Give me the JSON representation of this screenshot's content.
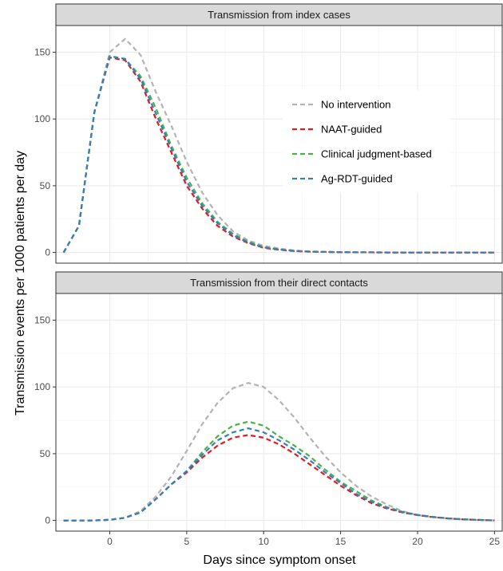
{
  "chart_data": {
    "type": "line",
    "xlabel": "Days since symptom onset",
    "ylabel": "Transmission events per 1000 patients per day",
    "xlim": [
      -3.5,
      25.5
    ],
    "ylim": [
      -8,
      170
    ],
    "x_ticks": [
      0,
      5,
      10,
      15,
      20,
      25
    ],
    "y_ticks": [
      0,
      50,
      100,
      150
    ],
    "grid": true,
    "legend_position": "top-right (inside top panel)",
    "series_styles": [
      {
        "name": "No intervention",
        "color": "#b3b3b3"
      },
      {
        "name": "NAAT-guided",
        "color": "#e41a1c"
      },
      {
        "name": "Clinical judgment-based",
        "color": "#4daf4a"
      },
      {
        "name": "Ag-RDT-guided",
        "color": "#377eb8"
      }
    ],
    "x": [
      -3,
      -2,
      -1,
      0,
      1,
      2,
      3,
      4,
      5,
      6,
      7,
      8,
      9,
      10,
      11,
      12,
      13,
      14,
      15,
      16,
      17,
      18,
      19,
      20,
      21,
      22,
      23,
      24,
      25
    ],
    "panels": [
      {
        "title": "Transmission from index cases",
        "series": [
          {
            "name": "No intervention",
            "values": [
              0,
              20,
              105,
              150,
              160,
              148,
              120,
              95,
              68,
              45,
              28,
              16,
              9,
              5,
              3,
              1.5,
              0.8,
              0.5,
              0.3,
              0.2,
              0.1,
              0.1,
              0,
              0,
              0,
              0,
              0,
              0,
              0
            ]
          },
          {
            "name": "NAAT-guided",
            "values": [
              0,
              20,
              105,
              146,
              144,
              128,
              100,
              75,
              50,
              33,
              20,
              12,
              7,
              3.5,
              2,
              1,
              0.6,
              0.4,
              0.2,
              0.1,
              0.1,
              0,
              0,
              0,
              0,
              0,
              0,
              0,
              0
            ]
          },
          {
            "name": "Clinical judgment-based",
            "values": [
              0,
              20,
              105,
              147,
              145,
              132,
              108,
              80,
              56,
              37,
              23,
              14,
              8,
              4,
              2.5,
              1.3,
              0.7,
              0.4,
              0.3,
              0.2,
              0.1,
              0,
              0,
              0,
              0,
              0,
              0,
              0,
              0
            ]
          },
          {
            "name": "Ag-RDT-guided",
            "values": [
              0,
              20,
              105,
              147,
              145,
              130,
              104,
              78,
              53,
              35,
              22,
              13,
              7.5,
              3.8,
              2.2,
              1.2,
              0.6,
              0.4,
              0.2,
              0.1,
              0.1,
              0,
              0,
              0,
              0,
              0,
              0,
              0,
              0
            ]
          }
        ]
      },
      {
        "title": "Transmission from their direct contacts",
        "series": [
          {
            "name": "No intervention",
            "values": [
              0,
              0,
              0,
              0.5,
              2,
              7,
              18,
              33,
              52,
              72,
              88,
              99,
              103,
              100,
              90,
              77,
              62,
              48,
              36,
              26,
              18,
              12,
              7,
              4,
              2.5,
              1.5,
              0.8,
              0.4,
              0
            ]
          },
          {
            "name": "NAAT-guided",
            "values": [
              0,
              0,
              0,
              0.5,
              2,
              6,
              16,
              27,
              36,
              47,
              56,
              62,
              64,
              62,
              57,
              50,
              42,
              34,
              26,
              19,
              13,
              9,
              6,
              4,
              2.5,
              1.5,
              0.8,
              0.4,
              0
            ]
          },
          {
            "name": "Clinical judgment-based",
            "values": [
              0,
              0,
              0,
              0.5,
              2,
              6,
              16,
              27,
              37,
              51,
              63,
              71,
              74,
              71,
              63,
              56,
              48,
              38,
              29,
              22,
              15,
              10,
              6.5,
              4.2,
              2.7,
              1.6,
              0.9,
              0.4,
              0
            ]
          },
          {
            "name": "Ag-RDT-guided",
            "values": [
              0,
              0,
              0,
              0.5,
              2,
              6,
              16,
              27,
              37,
              49,
              60,
              66,
              69,
              66,
              60,
              53,
              45,
              36,
              28,
              20,
              14,
              9.5,
              6.2,
              4.1,
              2.6,
              1.5,
              0.8,
              0.4,
              0
            ]
          }
        ]
      }
    ]
  }
}
